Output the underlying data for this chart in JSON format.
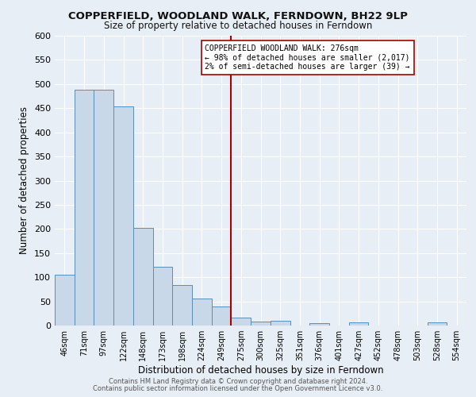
{
  "title": "COPPERFIELD, WOODLAND WALK, FERNDOWN, BH22 9LP",
  "subtitle": "Size of property relative to detached houses in Ferndown",
  "xlabel": "Distribution of detached houses by size in Ferndown",
  "ylabel": "Number of detached properties",
  "bar_color": "#c8d8e8",
  "bar_edge_color": "#5b8db8",
  "categories": [
    "46sqm",
    "71sqm",
    "97sqm",
    "122sqm",
    "148sqm",
    "173sqm",
    "198sqm",
    "224sqm",
    "249sqm",
    "275sqm",
    "300sqm",
    "325sqm",
    "351sqm",
    "376sqm",
    "401sqm",
    "427sqm",
    "452sqm",
    "478sqm",
    "503sqm",
    "528sqm",
    "554sqm"
  ],
  "values": [
    105,
    488,
    488,
    453,
    202,
    122,
    84,
    56,
    40,
    16,
    9,
    10,
    0,
    5,
    0,
    6,
    0,
    0,
    0,
    7,
    0
  ],
  "vline_color": "#aa0000",
  "vline_label": "COPPERFIELD WOODLAND WALK: 276sqm",
  "annotation_line1": "← 98% of detached houses are smaller (2,017)",
  "annotation_line2": "2% of semi-detached houses are larger (39) →",
  "ylim": [
    0,
    600
  ],
  "yticks": [
    0,
    50,
    100,
    150,
    200,
    250,
    300,
    350,
    400,
    450,
    500,
    550,
    600
  ],
  "footer_line1": "Contains HM Land Registry data © Crown copyright and database right 2024.",
  "footer_line2": "Contains public sector information licensed under the Open Government Licence v3.0.",
  "background_color": "#e8eef5",
  "grid_color": "#ffffff"
}
